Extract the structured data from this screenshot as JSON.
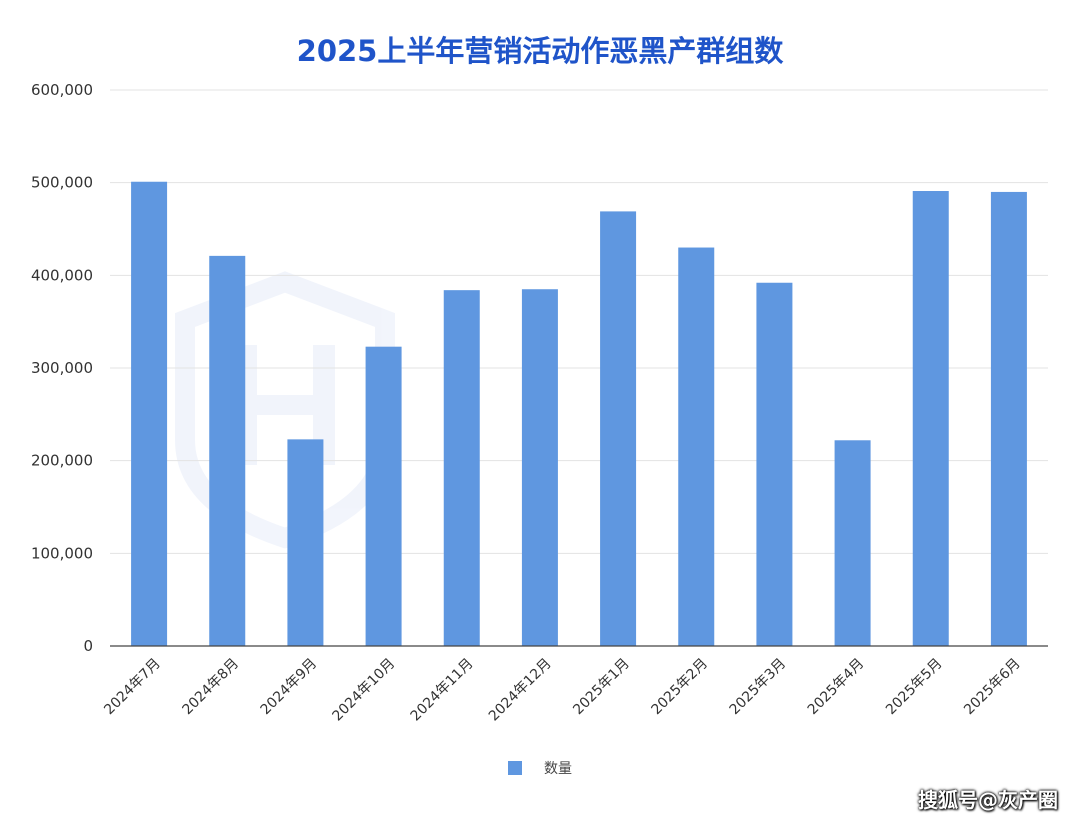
{
  "colors": {
    "title": "#1f54c9",
    "bar": "#5f97e0"
  },
  "chart_data": {
    "type": "bar",
    "title": "2025上半年营销活动作恶黑产群组数",
    "xlabel": "",
    "ylabel": "",
    "categories": [
      "2024年7月",
      "2024年8月",
      "2024年9月",
      "2024年10月",
      "2024年11月",
      "2024年12月",
      "2025年1月",
      "2025年2月",
      "2025年3月",
      "2025年4月",
      "2025年5月",
      "2025年6月"
    ],
    "series": [
      {
        "name": "数量",
        "values": [
          501000,
          421000,
          223000,
          323000,
          384000,
          385000,
          469000,
          430000,
          392000,
          222000,
          491000,
          490000
        ]
      }
    ],
    "ylim": [
      0,
      600000
    ],
    "yticks": [
      0,
      100000,
      200000,
      300000,
      400000,
      500000,
      600000
    ],
    "ytick_labels": [
      "0",
      "100,000",
      "200,000",
      "300,000",
      "400,000",
      "500,000",
      "600,000"
    ],
    "grid": true,
    "legend_position": "bottom"
  },
  "watermark": {
    "text": "搜狐号@灰产圈"
  }
}
